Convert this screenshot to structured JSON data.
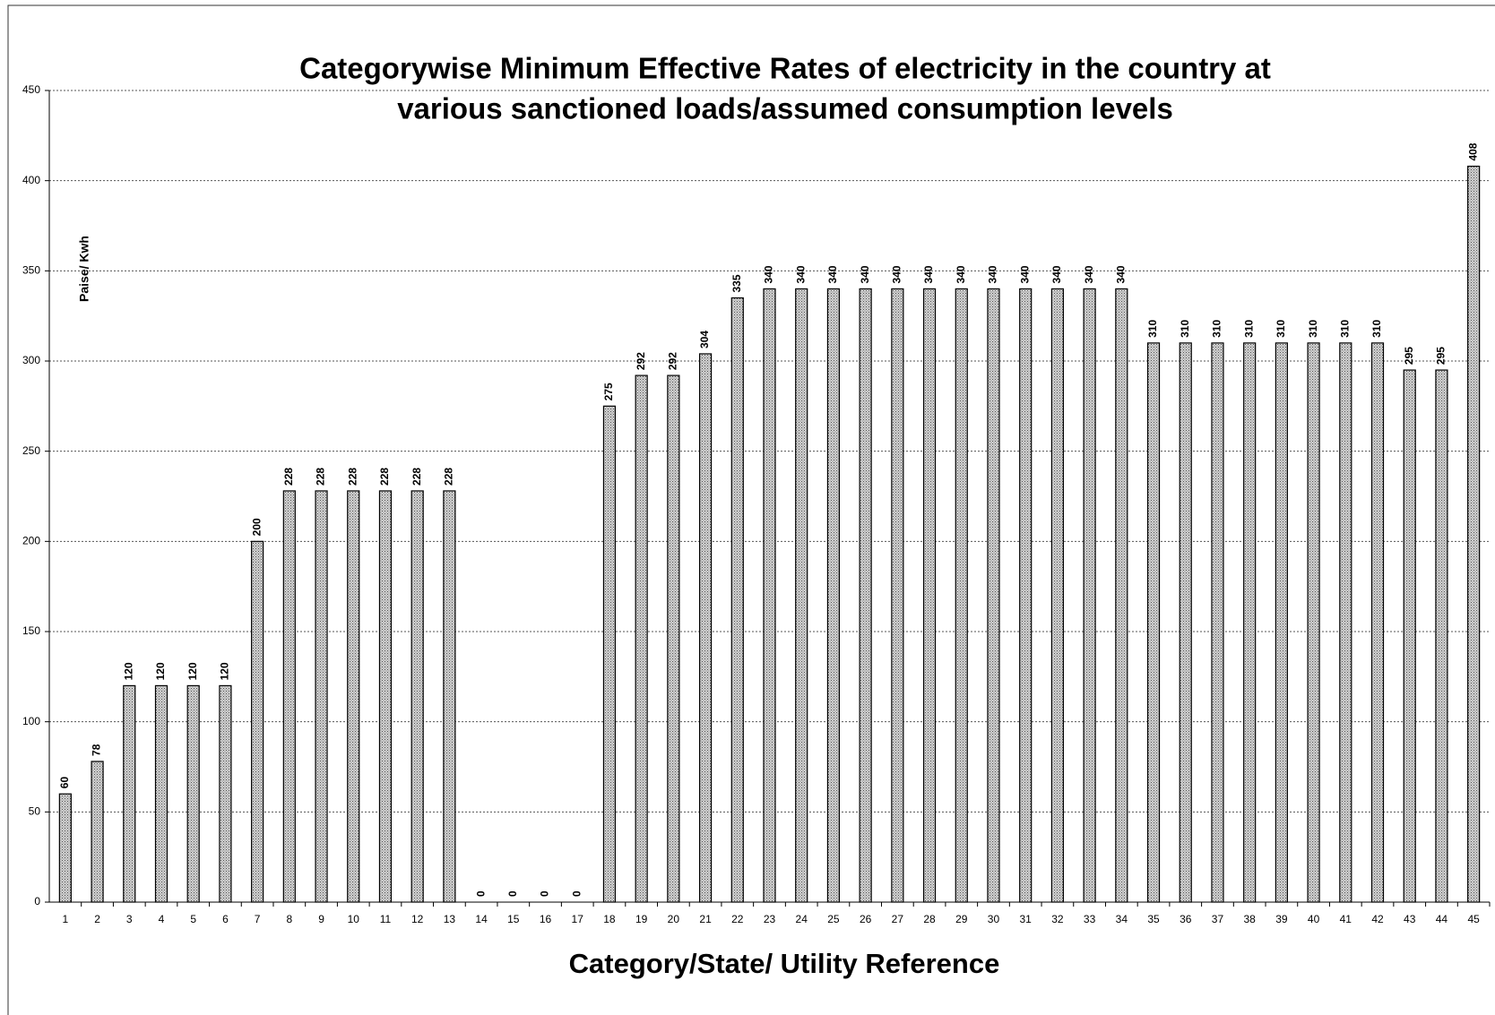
{
  "chart_data": {
    "type": "bar",
    "title": [
      "Categorywise Minimum Effective Rates of electricity in the country at",
      "various sanctioned loads/assumed consumption levels"
    ],
    "y_label": "Paise/ Kwh",
    "x_label": "Category/State/ Utility  Reference",
    "categories": [
      "1",
      "2",
      "3",
      "4",
      "5",
      "6",
      "7",
      "8",
      "9",
      "10",
      "11",
      "12",
      "13",
      "14",
      "15",
      "16",
      "17",
      "18",
      "19",
      "20",
      "21",
      "22",
      "23",
      "24",
      "25",
      "26",
      "27",
      "28",
      "29",
      "30",
      "31",
      "32",
      "33",
      "34",
      "35",
      "36",
      "37",
      "38",
      "39",
      "40",
      "41",
      "42",
      "43",
      "44",
      "45"
    ],
    "values": [
      60,
      78,
      120,
      120,
      120,
      120,
      200,
      228,
      228,
      228,
      228,
      228,
      228,
      0,
      0,
      0,
      0,
      275,
      292,
      292,
      304,
      335,
      340,
      340,
      340,
      340,
      340,
      340,
      340,
      340,
      340,
      340,
      340,
      340,
      310,
      310,
      310,
      310,
      310,
      310,
      310,
      310,
      295,
      295,
      408
    ],
    "color": "#b4b4b4",
    "ylim": [
      0,
      450
    ],
    "yticks": [
      0,
      50,
      100,
      150,
      200,
      250,
      300,
      350,
      400,
      450
    ],
    "grid": true
  }
}
